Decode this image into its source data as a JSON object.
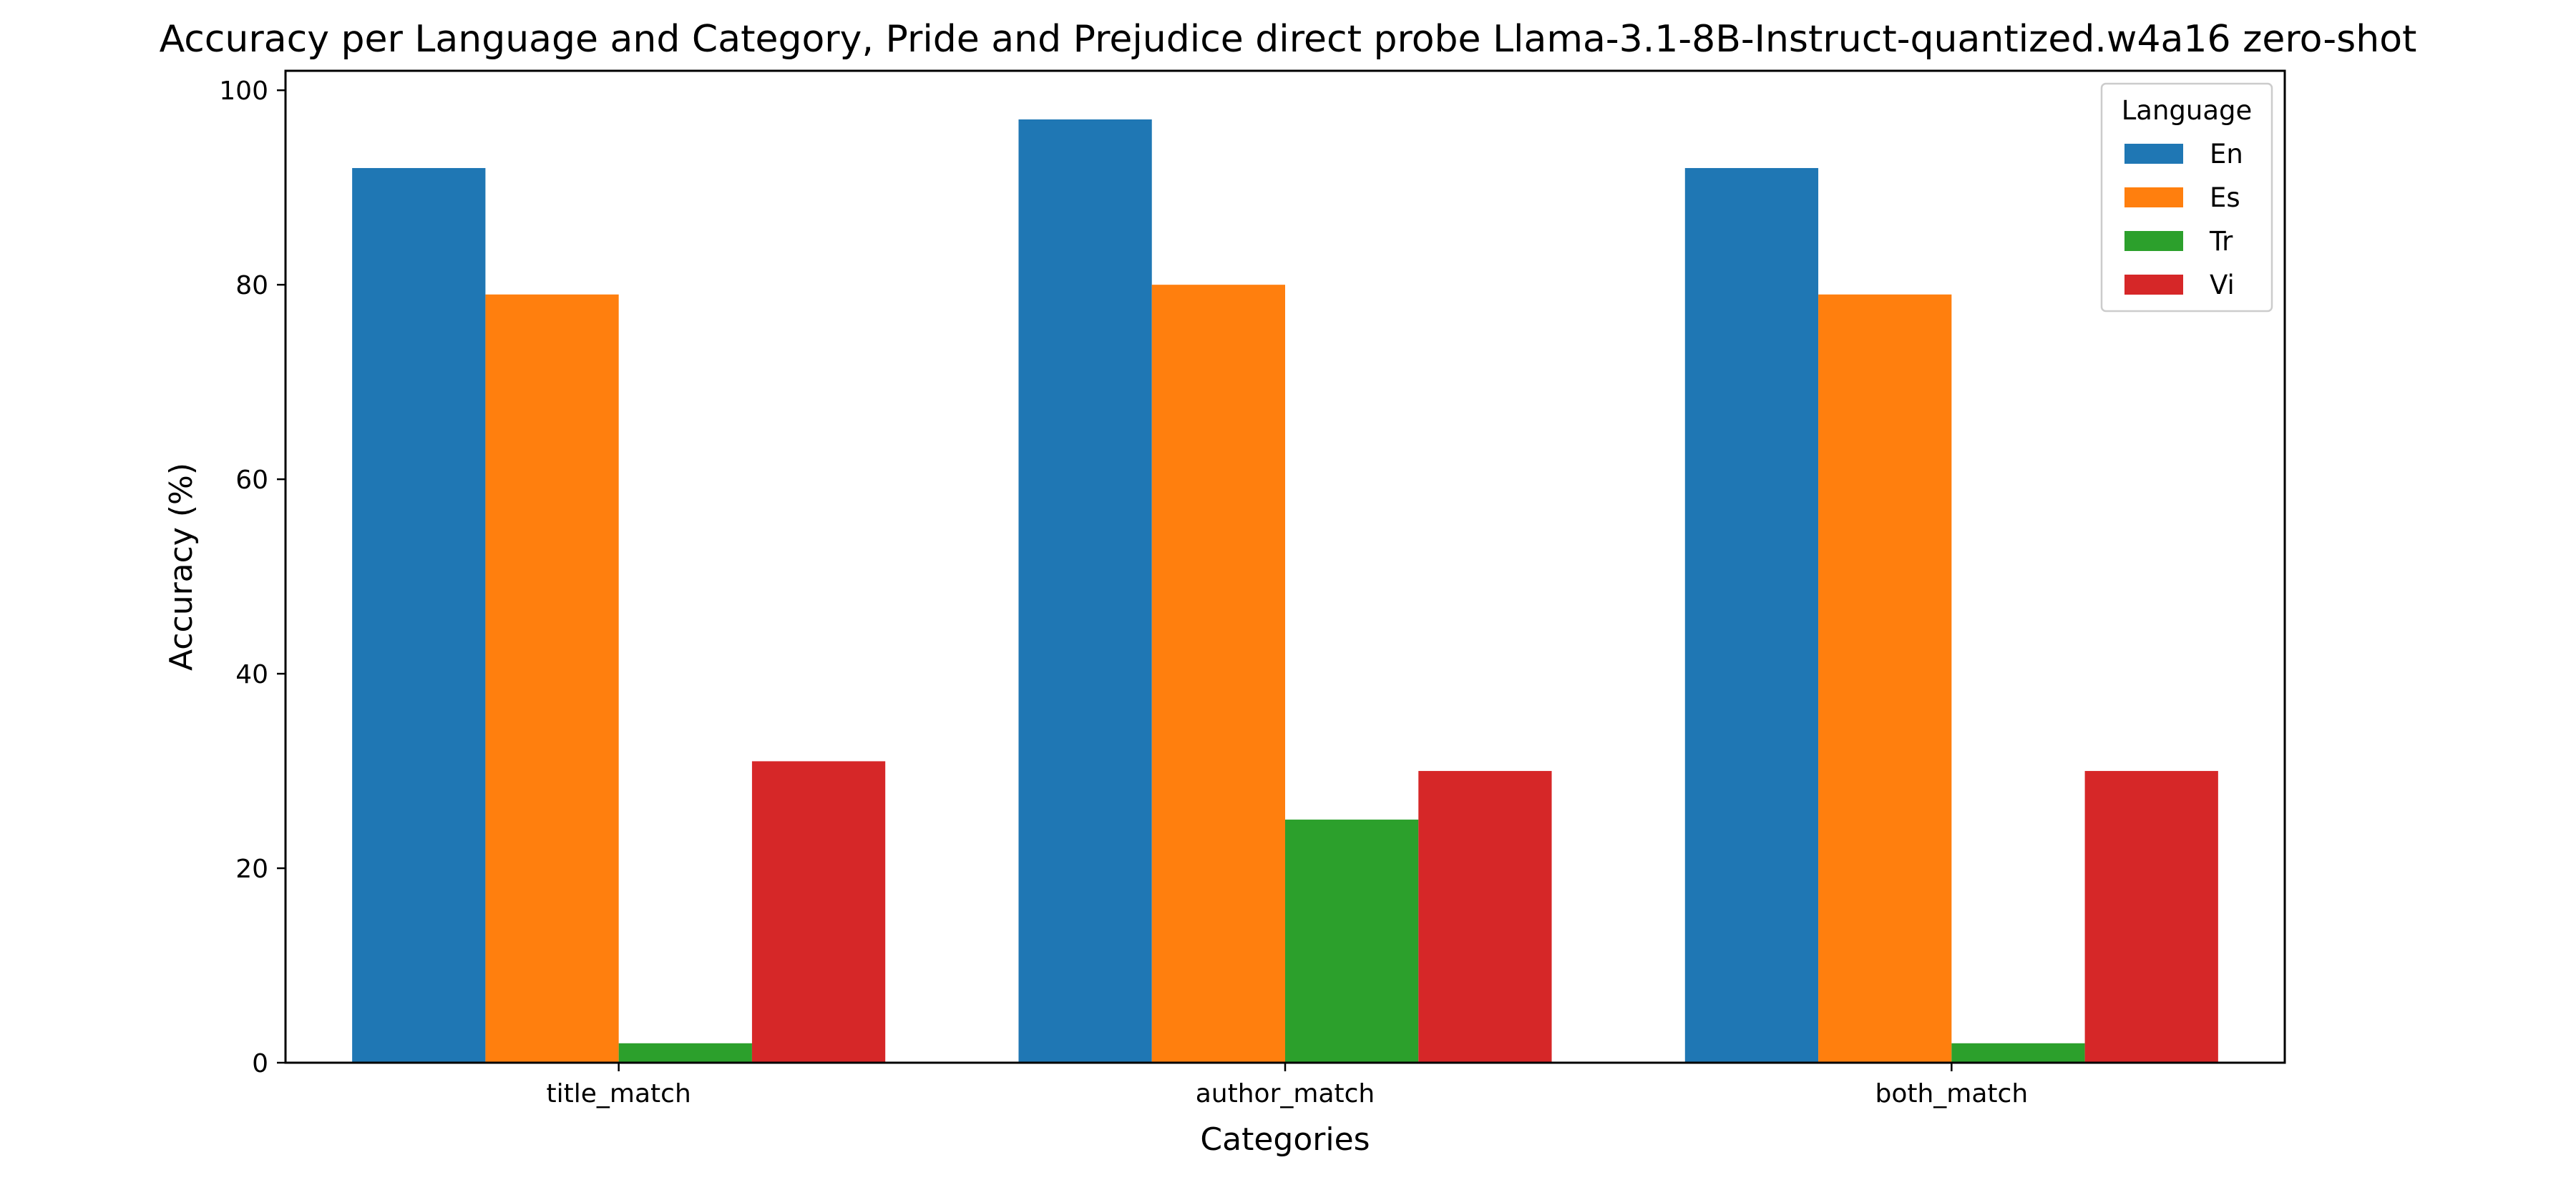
{
  "chart_data": {
    "type": "bar",
    "title": "Accuracy per Language and Category, Pride and Prejudice direct probe Llama-3.1-8B-Instruct-quantized.w4a16 zero-shot",
    "xlabel": "Categories",
    "ylabel": "Accuracy (%)",
    "categories": [
      "title_match",
      "author_match",
      "both_match"
    ],
    "ylim": [
      0,
      102
    ],
    "yticks": [
      0,
      20,
      40,
      60,
      80,
      100
    ],
    "grid": false,
    "legend": {
      "title": "Language",
      "placement": "top-right"
    },
    "series": [
      {
        "name": "En",
        "color": "#1f77b4",
        "values": [
          92,
          97,
          92
        ]
      },
      {
        "name": "Es",
        "color": "#ff7f0e",
        "values": [
          79,
          80,
          79
        ]
      },
      {
        "name": "Tr",
        "color": "#2ca02c",
        "values": [
          2,
          25,
          2
        ]
      },
      {
        "name": "Vi",
        "color": "#d62728",
        "values": [
          31,
          30,
          30
        ]
      }
    ]
  }
}
